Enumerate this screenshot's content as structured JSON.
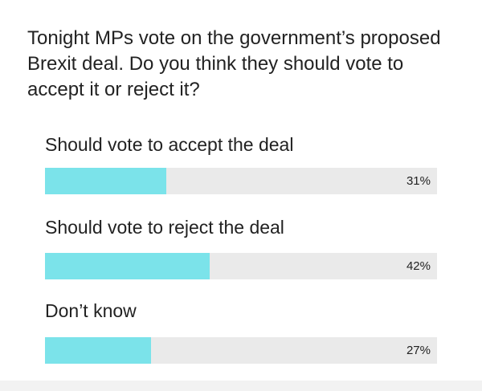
{
  "question": "Tonight MPs vote on the government’s proposed Brexit deal. Do you think they should vote to accept it or reject it?",
  "colors": {
    "bar_fill": "#7be3ea",
    "bar_track": "#eaeaea",
    "text": "#222222"
  },
  "chart_data": {
    "type": "bar",
    "orientation": "horizontal",
    "title": "Tonight MPs vote on the government’s proposed Brexit deal. Do you think they should vote to accept it or reject it?",
    "categories": [
      "Should vote to accept the deal",
      "Should vote to reject the deal",
      "Don’t know"
    ],
    "values": [
      31,
      42,
      27
    ],
    "value_labels": [
      "31%",
      "42%",
      "27%"
    ],
    "xlim": [
      0,
      100
    ],
    "grid": false,
    "legend": "none"
  }
}
